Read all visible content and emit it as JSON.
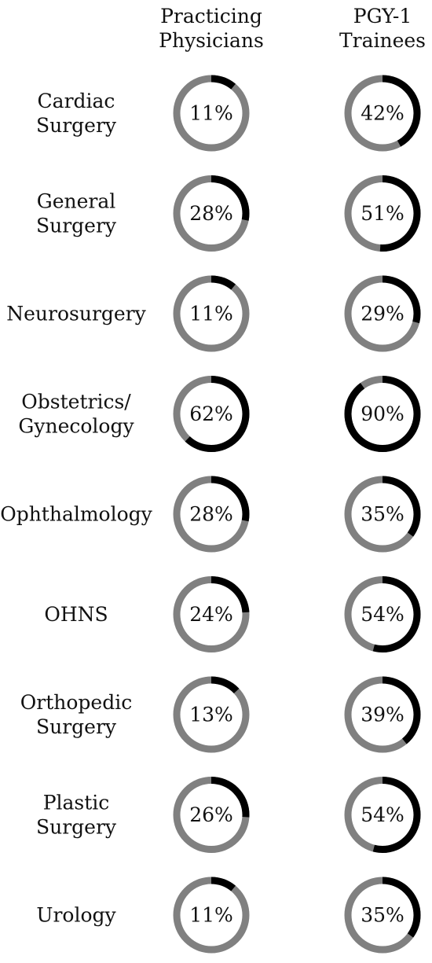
{
  "chart_data": {
    "type": "donut-grid",
    "columns": [
      {
        "key": "practicing",
        "label_lines": [
          "Practicing",
          "Physicians"
        ]
      },
      {
        "key": "pgy1",
        "label_lines": [
          "PGY-1",
          "Trainees"
        ]
      }
    ],
    "rows": [
      {
        "label_lines": [
          "Cardiac",
          "Surgery"
        ],
        "values": [
          11,
          42
        ]
      },
      {
        "label_lines": [
          "General",
          "Surgery"
        ],
        "values": [
          28,
          51
        ]
      },
      {
        "label_lines": [
          "Neurosurgery"
        ],
        "values": [
          11,
          29
        ]
      },
      {
        "label_lines": [
          "Obstetrics/",
          "Gynecology"
        ],
        "values": [
          62,
          90
        ]
      },
      {
        "label_lines": [
          "Ophthalmology"
        ],
        "values": [
          28,
          35
        ]
      },
      {
        "label_lines": [
          "OHNS"
        ],
        "values": [
          24,
          54
        ]
      },
      {
        "label_lines": [
          "Orthopedic",
          "Surgery"
        ],
        "values": [
          13,
          39
        ]
      },
      {
        "label_lines": [
          "Plastic",
          "Surgery"
        ],
        "values": [
          26,
          54
        ]
      },
      {
        "label_lines": [
          "Urology"
        ],
        "values": [
          11,
          35
        ]
      }
    ],
    "value_suffix": "%",
    "colors": {
      "highlight": "#000000",
      "remainder": "#808080",
      "text": "#111111"
    }
  }
}
